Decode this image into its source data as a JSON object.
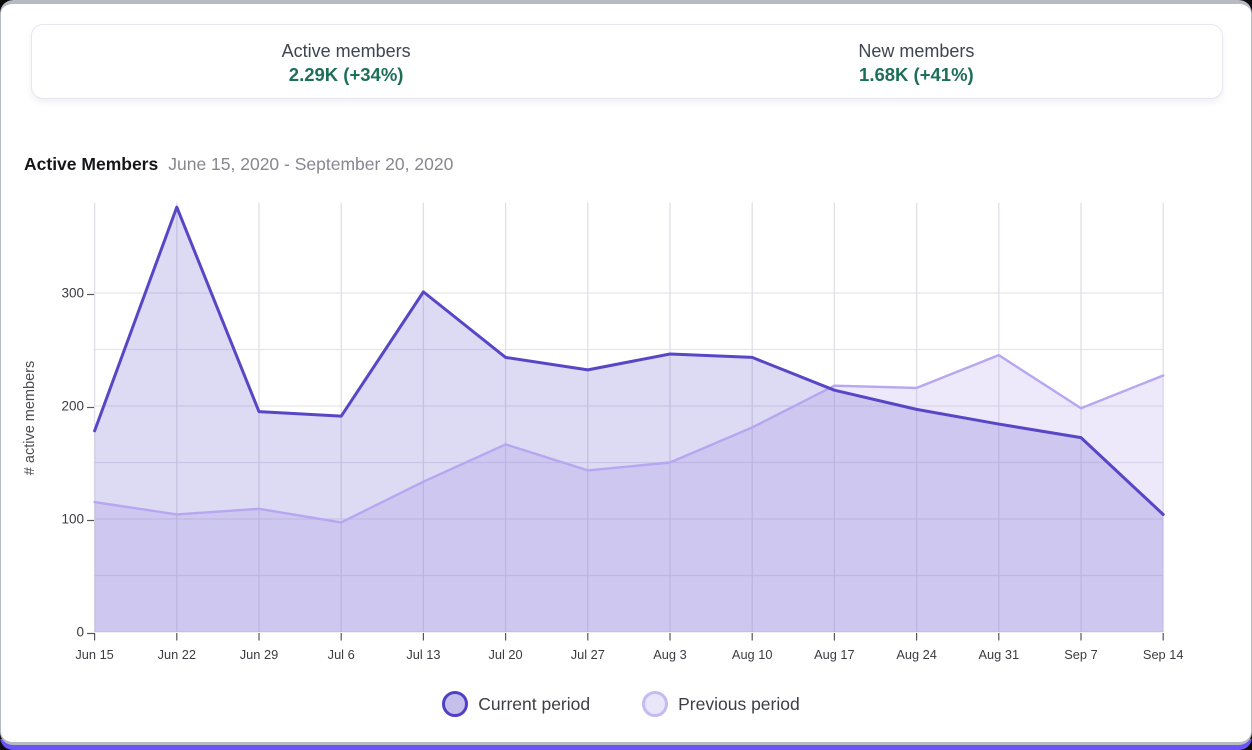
{
  "frame": {
    "page_background": "#6a54f6",
    "panel_background": "#ffffff",
    "panel_border": "#b6bac2"
  },
  "stats": [
    {
      "label": "Active members",
      "value": "2.29K (+34%)"
    },
    {
      "label": "New members",
      "value": "1.68K (+41%)"
    }
  ],
  "header": {
    "title": "Active Members",
    "date_range": "June 15, 2020 - September 20, 2020"
  },
  "chart_data": {
    "type": "area",
    "title": "Active Members",
    "xlabel": "",
    "ylabel": "# active members",
    "x": [
      "Jun 15",
      "Jun 22",
      "Jun 29",
      "Jul 6",
      "Jul 13",
      "Jul 20",
      "Jul 27",
      "Aug 3",
      "Aug 10",
      "Aug 17",
      "Aug 24",
      "Aug 31",
      "Sep 7",
      "Sep 14"
    ],
    "series": [
      {
        "name": "Previous period",
        "color": "#b7a6f0",
        "fill_opacity": 0.25,
        "values": [
          115,
          104,
          109,
          97,
          133,
          166,
          143,
          150,
          181,
          218,
          216,
          245,
          198,
          227
        ]
      },
      {
        "name": "Current period",
        "color": "#5746c6",
        "fill_opacity": 0.2,
        "values": [
          178,
          376,
          195,
          191,
          301,
          243,
          232,
          246,
          243,
          214,
          197,
          184,
          172,
          104
        ]
      }
    ],
    "ylim": [
      0,
      380
    ],
    "yticks": [
      0,
      100,
      200,
      300
    ],
    "grid": true,
    "grid_minor_step": 50,
    "legend_position": "bottom",
    "colors": {
      "h_gridline": "#e6e5eb",
      "v_gridline": "#e0dfe6",
      "tick": "#55565a",
      "tick_label": "#3b3c41",
      "axis_label": "#4c4d53"
    }
  },
  "legend": {
    "items": [
      {
        "label": "Current period",
        "swatch_fill": "#c4bfeb",
        "swatch_border": "#5040c6"
      },
      {
        "label": "Previous period",
        "swatch_fill": "#eae6fa",
        "swatch_border": "#c5baf2"
      }
    ]
  }
}
